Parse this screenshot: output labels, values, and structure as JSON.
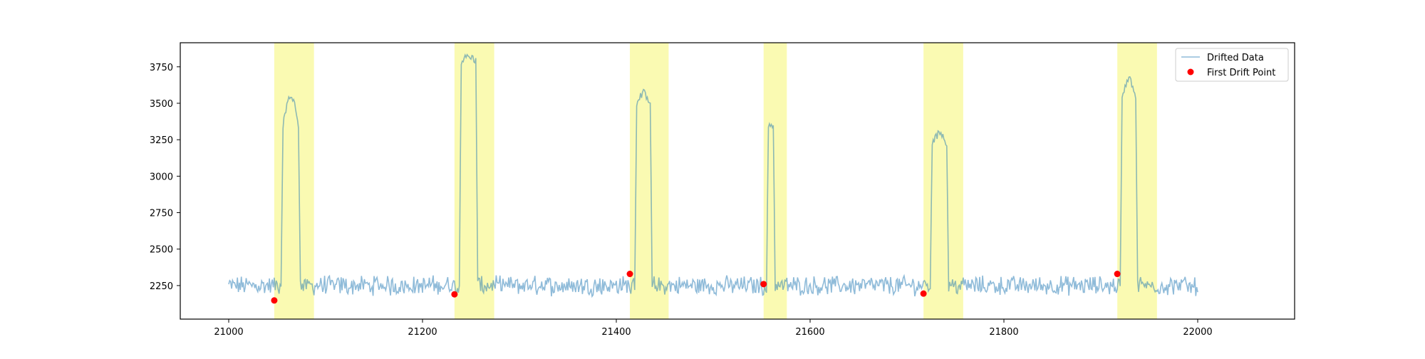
{
  "chart_data": {
    "type": "line",
    "title": "",
    "xlabel": "",
    "ylabel": "",
    "xlim": [
      20950,
      22100
    ],
    "ylim": [
      2020,
      3915
    ],
    "x_ticks": [
      21000,
      21200,
      21400,
      21600,
      21800,
      22000
    ],
    "y_ticks": [
      2250,
      2500,
      2750,
      3000,
      3250,
      3500,
      3750
    ],
    "grid": false,
    "legend_position": "top-right",
    "series": [
      {
        "name": "Drifted Data",
        "kind": "line",
        "color": "#1f77b4",
        "x_start": 21000,
        "x_end": 22000,
        "baseline": 2250,
        "noise_amplitude": 55
      },
      {
        "name": "First Drift Point",
        "kind": "scatter",
        "color": "#ff0000",
        "points": [
          {
            "x": 21047,
            "y": 2148
          },
          {
            "x": 21233,
            "y": 2190
          },
          {
            "x": 21414,
            "y": 2330
          },
          {
            "x": 21552,
            "y": 2260
          },
          {
            "x": 21717,
            "y": 2195
          },
          {
            "x": 21917,
            "y": 2330
          }
        ]
      }
    ],
    "drift_regions": [
      {
        "start": 21047,
        "end": 21088,
        "peak": 3550,
        "plateau": 3350,
        "rise": 21056,
        "fall": 21072
      },
      {
        "start": 21233,
        "end": 21274,
        "peak": 3820,
        "plateau": 3790,
        "rise": 21240,
        "fall": 21255
      },
      {
        "start": 21414,
        "end": 21454,
        "peak": 3570,
        "plateau": 3480,
        "rise": 21421,
        "fall": 21435
      },
      {
        "start": 21552,
        "end": 21576,
        "peak": 3350,
        "plateau": 3350,
        "rise": 21557,
        "fall": 21562
      },
      {
        "start": 21717,
        "end": 21758,
        "peak": 3290,
        "plateau": 3220,
        "rise": 21726,
        "fall": 21741
      },
      {
        "start": 21917,
        "end": 21958,
        "peak": 3660,
        "plateau": 3550,
        "rise": 21922,
        "fall": 21936
      }
    ],
    "region_color": "#eeee00",
    "legend": [
      {
        "label": "Drifted Data",
        "marker": "line",
        "color": "#1f77b4"
      },
      {
        "label": "First Drift Point",
        "marker": "dot",
        "color": "#ff0000"
      }
    ]
  }
}
